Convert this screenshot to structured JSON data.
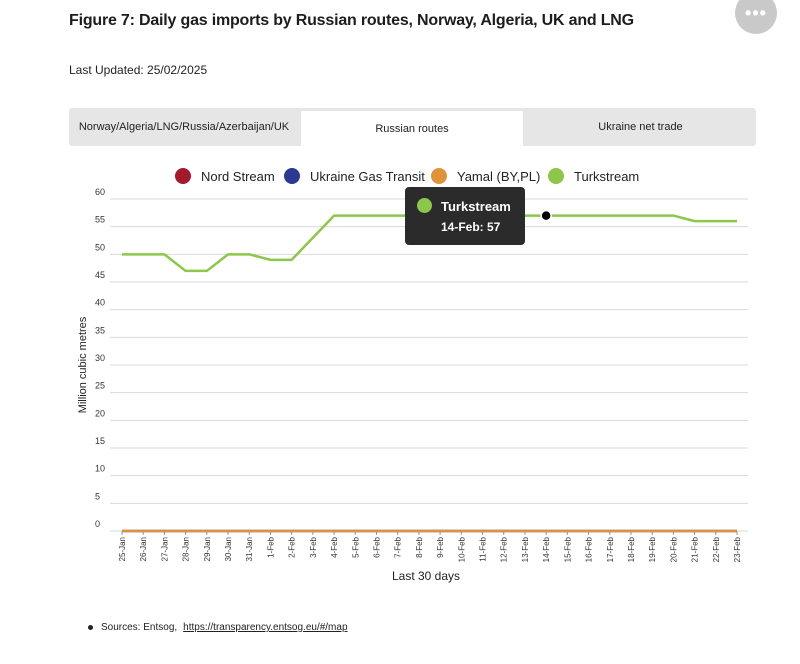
{
  "page": {
    "title": "Figure 7: Daily gas imports by Russian routes, Norway, Algeria, UK and LNG",
    "last_updated": "Last Updated: 25/02/2025",
    "menu_icon": "ellipsis-icon"
  },
  "tabs": [
    {
      "label": "Norway/Algeria/LNG/Russia/Azerbaijan/UK",
      "active": false
    },
    {
      "label": "Russian routes",
      "active": true
    },
    {
      "label": "Ukraine net trade",
      "active": false
    }
  ],
  "tooltip": {
    "series": "Turkstream",
    "text": "14-Feb: 57"
  },
  "source": {
    "label": "Sources: Entsog,",
    "link_text": "https://transparency.entsog.eu/#/map"
  },
  "colors": {
    "nord_stream": "#a3192e",
    "ukraine_gas_transit": "#2b3990",
    "yamal": "#e0923a",
    "turkstream": "#8dc64a",
    "grid": "#d9d9d9"
  },
  "chart_data": {
    "type": "line",
    "xlabel": "Last 30 days",
    "ylabel": "Million cubic metres",
    "ylim": [
      0,
      60
    ],
    "yticks": [
      0,
      5,
      10,
      15,
      20,
      25,
      30,
      35,
      40,
      45,
      50,
      55,
      60
    ],
    "categories": [
      "25-Jan",
      "26-Jan",
      "27-Jan",
      "28-Jan",
      "29-Jan",
      "30-Jan",
      "31-Jan",
      "1-Feb",
      "2-Feb",
      "3-Feb",
      "4-Feb",
      "5-Feb",
      "6-Feb",
      "7-Feb",
      "8-Feb",
      "9-Feb",
      "10-Feb",
      "11-Feb",
      "12-Feb",
      "13-Feb",
      "14-Feb",
      "15-Feb",
      "16-Feb",
      "17-Feb",
      "18-Feb",
      "19-Feb",
      "20-Feb",
      "21-Feb",
      "22-Feb",
      "23-Feb"
    ],
    "highlight": {
      "series": "Turkstream",
      "category": "14-Feb",
      "value": 57
    },
    "series": [
      {
        "name": "Nord Stream",
        "color": "#a3192e",
        "values": [
          0,
          0,
          0,
          0,
          0,
          0,
          0,
          0,
          0,
          0,
          0,
          0,
          0,
          0,
          0,
          0,
          0,
          0,
          0,
          0,
          0,
          0,
          0,
          0,
          0,
          0,
          0,
          0,
          0,
          0
        ]
      },
      {
        "name": "Ukraine Gas Transit",
        "color": "#2b3990",
        "values": [
          0,
          0,
          0,
          0,
          0,
          0,
          0,
          0,
          0,
          0,
          0,
          0,
          0,
          0,
          0,
          0,
          0,
          0,
          0,
          0,
          0,
          0,
          0,
          0,
          0,
          0,
          0,
          0,
          0,
          0
        ]
      },
      {
        "name": "Yamal (BY,PL)",
        "color": "#e0923a",
        "values": [
          0,
          0,
          0,
          0,
          0,
          0,
          0,
          0,
          0,
          0,
          0,
          0,
          0,
          0,
          0,
          0,
          0,
          0,
          0,
          0,
          0,
          0,
          0,
          0,
          0,
          0,
          0,
          0,
          0,
          0
        ]
      },
      {
        "name": "Turkstream",
        "color": "#8dc64a",
        "values": [
          50,
          50,
          50,
          47,
          47,
          50,
          50,
          49,
          49,
          53,
          57,
          57,
          57,
          57,
          57,
          57,
          57,
          57,
          57,
          57,
          57,
          57,
          57,
          57,
          57,
          57,
          57,
          56,
          56,
          56
        ]
      }
    ]
  }
}
